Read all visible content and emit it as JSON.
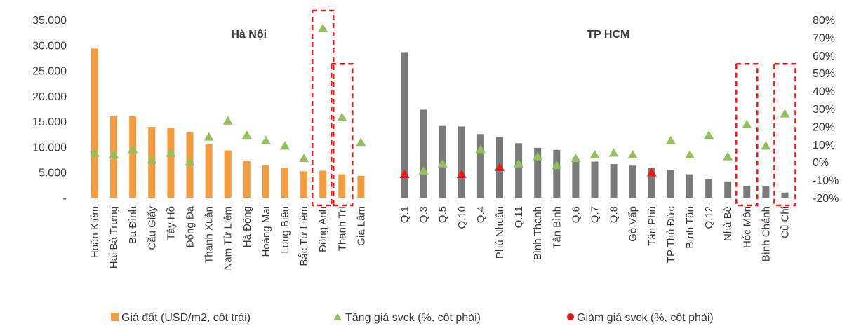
{
  "chart_data": {
    "type": "bar",
    "regions": [
      {
        "label": "Hà Nội",
        "start": 0,
        "end": 15
      },
      {
        "label": "TP HCM",
        "start": 15,
        "end": 33
      }
    ],
    "categories": [
      "Hoàn Kiếm",
      "Hai Bà Trưng",
      "Ba Đình",
      "Cầu Giấy",
      "Tây Hồ",
      "Đống Đa",
      "Thanh Xuân",
      "Nam Từ Liêm",
      "Hà Đông",
      "Hoàng Mai",
      "Long Biên",
      "Bắc Từ Liêm",
      "Đông Anh",
      "Thanh Trì",
      "Gia Lâm",
      "Q.1",
      "Q.3",
      "Q.5",
      "Q.10",
      "Q.4",
      "Phú Nhuận",
      "Q.11",
      "Bình Thạnh",
      "Tân Bình",
      "Q.6",
      "Q.7",
      "Q.8",
      "Gò Vấp",
      "Tân Phú",
      "TP Thủ Đức",
      "Bình Tân",
      "Q.12",
      "Nhà Bè",
      "Hóc Môn",
      "Bình Chánh",
      "Củ Chi"
    ],
    "series": [
      {
        "name": "Giá đất (USD/m2, cột trái)",
        "axis": "left",
        "color": "#f39c40",
        "values": [
          29300,
          16000,
          16000,
          13900,
          13700,
          12900,
          10500,
          9300,
          7300,
          6400,
          5900,
          5200,
          5300,
          4600,
          4300,
          28600,
          17300,
          14100,
          14000,
          12500,
          11900,
          10700,
          9800,
          9400,
          7600,
          7100,
          6600,
          6300,
          5900,
          5500,
          4600,
          3700,
          3200,
          2300,
          2200,
          1000
        ]
      },
      {
        "name": "Tăng giá svck (%, cột phải)",
        "axis": "right",
        "color": "#92c05a",
        "values": [
          5,
          4,
          7,
          1,
          5,
          0,
          14,
          23,
          15,
          12,
          9,
          2,
          75,
          25,
          11,
          null,
          -5,
          -1,
          null,
          7,
          null,
          -1,
          3,
          -2,
          2,
          4,
          5,
          4,
          null,
          12,
          4,
          15,
          3,
          21,
          9,
          27
        ]
      },
      {
        "name": "Giảm giá svck (%, cột phải)",
        "axis": "right",
        "color": "#e8191a",
        "values": [
          null,
          null,
          null,
          null,
          null,
          null,
          null,
          null,
          null,
          null,
          null,
          null,
          null,
          null,
          null,
          -7,
          null,
          null,
          -7,
          null,
          -3,
          null,
          null,
          null,
          null,
          null,
          null,
          null,
          -6,
          null,
          null,
          null,
          null,
          null,
          null,
          null
        ]
      }
    ],
    "hcm_bar_color": "#7a7a7a",
    "left_axis": {
      "ylim": [
        0,
        35000
      ],
      "ticks": [
        "-",
        "5.000",
        "10.000",
        "15.000",
        "20.000",
        "25.000",
        "30.000",
        "35.000"
      ]
    },
    "right_axis": {
      "ylim": [
        -20,
        80
      ],
      "ticks": [
        "-20%",
        "-10%",
        "0%",
        "10%",
        "20%",
        "30%",
        "40%",
        "50%",
        "60%",
        "70%",
        "80%"
      ]
    },
    "highlight_boxes": [
      {
        "categories": [
          "Đông Anh"
        ],
        "top_value": 80
      },
      {
        "categories": [
          "Thanh Trì"
        ],
        "top_value": 50
      },
      {
        "categories": [
          "Hóc Môn"
        ],
        "top_value": 50
      },
      {
        "categories": [
          "Củ Chi"
        ],
        "top_value": 50
      }
    ],
    "highlight_color": "#e8191a",
    "legend_position": "bottom"
  }
}
